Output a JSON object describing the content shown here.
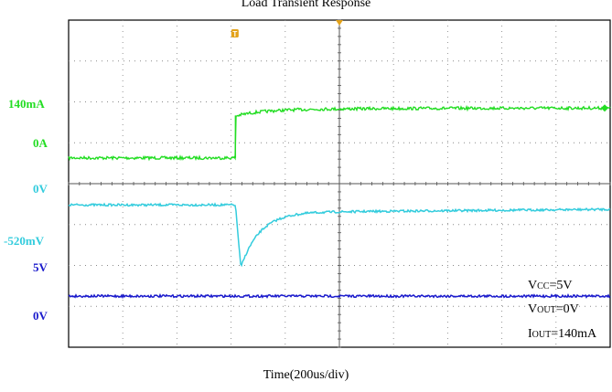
{
  "chart_data": {
    "type": "line",
    "title": "Load Transient Response",
    "xlabel": "Time(200us/div)",
    "x_divisions": 10,
    "y_divisions": 8,
    "trigger_marker": "T",
    "colors": {
      "current": "#22dd22",
      "vout": "#33ccdd",
      "vcc": "#1a1acc",
      "grid": "#8a8a8a",
      "trigger": "#e3a21a"
    },
    "channel_labels": {
      "current_high": "140mA",
      "current_low": "0A",
      "vout_zero": "0V",
      "vout_dip": "-520mV",
      "vcc_high": "5V",
      "vcc_zero": "0V"
    },
    "series": [
      {
        "name": "IOUT",
        "unit": "mA",
        "step_div": 3.08,
        "initial": 0,
        "final": 140,
        "settle_tau_div": 0.45
      },
      {
        "name": "VOUT",
        "unit": "mV",
        "step_div": 3.08,
        "baseline": 0,
        "dip_min": -520,
        "dip_at_div": 3.18,
        "recovery_tau_div": 1.2,
        "recovered_level": -55
      },
      {
        "name": "VCC",
        "unit": "V",
        "level": 5
      }
    ],
    "annotations": {
      "vcc_prefix": "V",
      "vcc_sub": "CC",
      "vcc_value": "=5V",
      "vout_prefix": "V",
      "vout_sub": "OUT",
      "vout_value": "=0V",
      "iout_prefix": "I",
      "iout_sub": "OUT",
      "iout_value": "=140mA"
    }
  }
}
